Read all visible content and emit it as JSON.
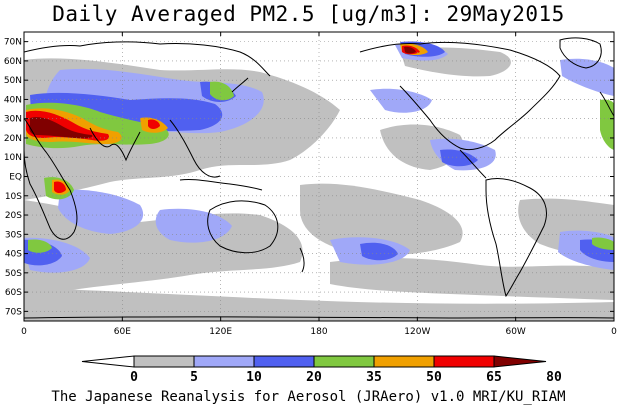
{
  "title": "Daily Averaged PM2.5 [ug/m3]: 29May2015",
  "footer": "The Japanese Reanalysis for Aerosol (JRAero) v1.0 MRI/KU_RIAM",
  "map": {
    "lon_range": [
      0,
      360
    ],
    "lat_range": [
      -75,
      75
    ],
    "lat_ticks": [
      {
        "value": 70,
        "label": "70N"
      },
      {
        "value": 60,
        "label": "60N"
      },
      {
        "value": 50,
        "label": "50N"
      },
      {
        "value": 40,
        "label": "40N"
      },
      {
        "value": 30,
        "label": "30N"
      },
      {
        "value": 20,
        "label": "20N"
      },
      {
        "value": 10,
        "label": "10N"
      },
      {
        "value": 0,
        "label": "EQ"
      },
      {
        "value": -10,
        "label": "10S"
      },
      {
        "value": -20,
        "label": "20S"
      },
      {
        "value": -30,
        "label": "30S"
      },
      {
        "value": -40,
        "label": "40S"
      },
      {
        "value": -50,
        "label": "50S"
      },
      {
        "value": -60,
        "label": "60S"
      },
      {
        "value": -70,
        "label": "70S"
      }
    ],
    "lon_ticks": [
      {
        "value": 0,
        "label": "0"
      },
      {
        "value": 60,
        "label": "60E"
      },
      {
        "value": 120,
        "label": "120E"
      },
      {
        "value": 180,
        "label": "180"
      },
      {
        "value": 240,
        "label": "120W"
      },
      {
        "value": 300,
        "label": "60W"
      },
      {
        "value": 360,
        "label": "0"
      }
    ],
    "grid": true
  },
  "colorbar": {
    "boundaries": [
      "0",
      "5",
      "10",
      "20",
      "35",
      "50",
      "65",
      "80"
    ],
    "colors": [
      "#ffffff",
      "#c0c0c0",
      "#a0a8f8",
      "#5060f0",
      "#80c840",
      "#f0a000",
      "#f00000",
      "#800000"
    ],
    "unit": "ug/m3"
  },
  "colors": {
    "land": "#ffffff",
    "c5": "#c0c0c0",
    "c10": "#a0a8f8",
    "c20": "#5060f0",
    "c35": "#80c840",
    "c50": "#f0a000",
    "c65": "#f00000",
    "c80": "#800000"
  }
}
